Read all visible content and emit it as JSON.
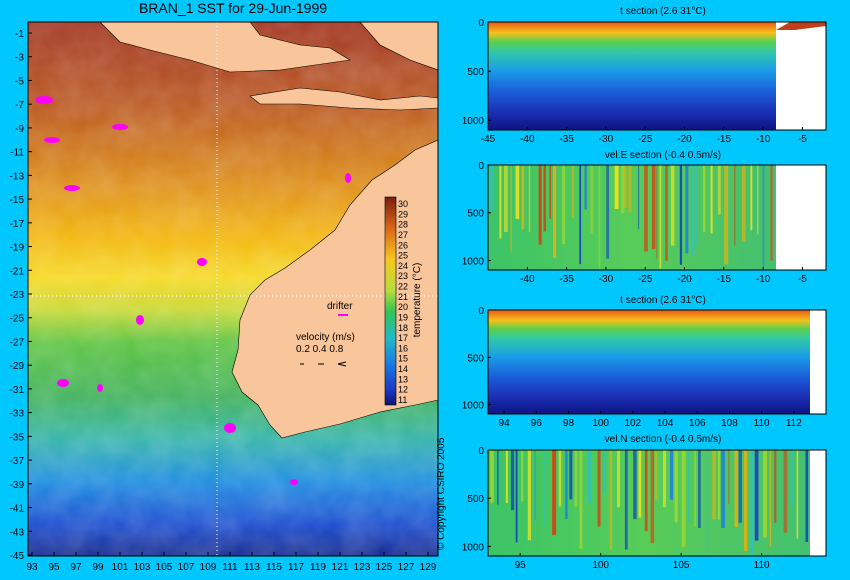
{
  "page": {
    "background": "#00c8ff"
  },
  "map": {
    "title": "BRAN_1 SST for 29-Jun-1999",
    "lat_ticks": [
      "-1",
      "-3",
      "-5",
      "-7",
      "-9",
      "-11",
      "-13",
      "-15",
      "-17",
      "-19",
      "-21",
      "-23",
      "-25",
      "-27",
      "-29",
      "-31",
      "-33",
      "-35",
      "-37",
      "-39",
      "-41",
      "-43",
      "-45"
    ],
    "lon_ticks": [
      "93",
      "95",
      "97",
      "99",
      "101",
      "103",
      "105",
      "107",
      "109",
      "111",
      "113",
      "115",
      "117",
      "119",
      "121",
      "123",
      "125",
      "127",
      "129"
    ],
    "colorbar_ticks": [
      "30",
      "29",
      "28",
      "27",
      "26",
      "25",
      "24",
      "23",
      "22",
      "21",
      "20",
      "19",
      "18",
      "17",
      "16",
      "15",
      "14",
      "13",
      "12",
      "11"
    ],
    "colorbar_label": "temperature (°C)",
    "drifter_label": "drifter",
    "velocity_label": "velocity (m/s)",
    "velocity_scale": [
      "0.2",
      "0.4",
      "0.8"
    ],
    "copyright": "© Copyright CSIRO 2005",
    "land_color": "#f9c59a",
    "drifter_color": "#ff00ff"
  },
  "panels": [
    {
      "title": "t section (2.6       31°C)",
      "xticks": [
        "-45",
        "-40",
        "-35",
        "-30",
        "-25",
        "-20",
        "-15",
        "-10",
        "-5"
      ],
      "yticks": [
        "0",
        "500",
        "1000"
      ]
    },
    {
      "title": "vel.E section (-0.4       0.5m/s)",
      "xticks": [
        "-40",
        "-35",
        "-30",
        "-25",
        "-20",
        "-15",
        "-10",
        "-5"
      ],
      "yticks": [
        "0",
        "500",
        "1000"
      ]
    },
    {
      "title": "t section (2.6       31°C)",
      "xticks": [
        "94",
        "96",
        "98",
        "100",
        "102",
        "104",
        "106",
        "108",
        "110",
        "112"
      ],
      "yticks": [
        "0",
        "500",
        "1000"
      ]
    },
    {
      "title": "vel.N section (-0.4       0.5m/s)",
      "xticks": [
        "95",
        "100",
        "105",
        "110"
      ],
      "yticks": [
        "0",
        "500",
        "1000"
      ]
    }
  ],
  "chart_data": [
    {
      "type": "heatmap",
      "title": "BRAN_1 SST for 29-Jun-1999",
      "x_ticks": [
        93,
        95,
        97,
        99,
        101,
        103,
        105,
        107,
        109,
        111,
        113,
        115,
        117,
        119,
        121,
        123,
        125,
        127,
        129
      ],
      "y_ticks": [
        -1,
        -3,
        -5,
        -7,
        -9,
        -11,
        -13,
        -15,
        -17,
        -19,
        -21,
        -23,
        -25,
        -27,
        -29,
        -31,
        -33,
        -35,
        -37,
        -39,
        -41,
        -43,
        -45
      ],
      "colorbar_range": [
        11,
        30
      ],
      "colorbar_label": "temperature (°C)",
      "approx_sst_by_latitude": [
        {
          "lat": -5,
          "value": 29
        },
        {
          "lat": -10,
          "value": 28
        },
        {
          "lat": -15,
          "value": 26
        },
        {
          "lat": -20,
          "value": 24
        },
        {
          "lat": -25,
          "value": 22
        },
        {
          "lat": -30,
          "value": 19
        },
        {
          "lat": -35,
          "value": 17
        },
        {
          "lat": -40,
          "value": 14
        },
        {
          "lat": -44,
          "value": 12
        }
      ]
    },
    {
      "type": "heatmap",
      "title": "t section (2.6       31°C)",
      "x_range": [
        -45,
        -2
      ],
      "y_range": [
        0,
        1100
      ],
      "x_ticks": [
        -45,
        -40,
        -35,
        -30,
        -25,
        -20,
        -15,
        -10,
        -5
      ],
      "y_ticks": [
        0,
        500,
        1000
      ],
      "land_from_x": -8
    },
    {
      "type": "heatmap",
      "title": "vel.E section (-0.4       0.5m/s)",
      "x_range": [
        -45,
        -2
      ],
      "y_range": [
        0,
        1100
      ],
      "x_ticks": [
        -40,
        -35,
        -30,
        -25,
        -20,
        -15,
        -10,
        -5
      ],
      "y_ticks": [
        0,
        500,
        1000
      ],
      "land_from_x": -8
    },
    {
      "type": "heatmap",
      "title": "t section (2.6       31°C)",
      "x_range": [
        93,
        114
      ],
      "y_range": [
        0,
        1100
      ],
      "x_ticks": [
        94,
        96,
        98,
        100,
        102,
        104,
        106,
        108,
        110,
        112
      ],
      "y_ticks": [
        0,
        500,
        1000
      ],
      "land_from_x": 113
    },
    {
      "type": "heatmap",
      "title": "vel.N section (-0.4       0.5m/s)",
      "x_range": [
        93,
        114
      ],
      "y_range": [
        0,
        1100
      ],
      "x_ticks": [
        95,
        100,
        105,
        110
      ],
      "y_ticks": [
        0,
        500,
        1000
      ],
      "land_from_x": 113
    }
  ]
}
